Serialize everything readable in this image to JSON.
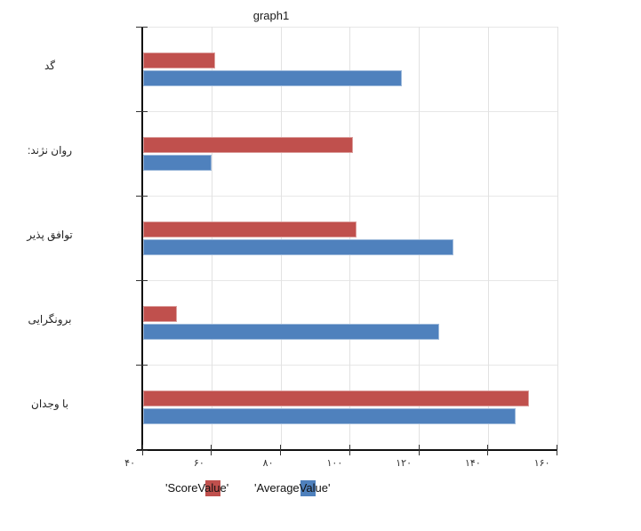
{
  "title": "graph1",
  "legend": {
    "items": [
      {
        "label": "'ScoreValue'",
        "color": "#C0504D"
      },
      {
        "label": "'AverageValue'",
        "color": "#4F81BD"
      }
    ]
  },
  "chart_data": {
    "type": "bar",
    "orientation": "horizontal",
    "title": "graph1",
    "categories": [
      "گد",
      "روان نژند:",
      "توافق پذیر",
      "برونگرایی",
      "با وجدان"
    ],
    "series": [
      {
        "name": "'ScoreValue'",
        "color": "#C0504D",
        "values": [
          61,
          101,
          102,
          50,
          152
        ]
      },
      {
        "name": "'AverageValue'",
        "color": "#4F81BD",
        "values": [
          115,
          60,
          130,
          126,
          148
        ]
      }
    ],
    "xlim": [
      40,
      160
    ],
    "x_ticks": [
      40,
      60,
      80,
      100,
      120,
      140,
      160
    ],
    "x_tick_labels": [
      "۴۰",
      "۶۰",
      "۸۰",
      "۱۰۰",
      "۱۲۰",
      "۱۴۰",
      "۱۶۰"
    ],
    "grid": true,
    "legend_position": "bottom",
    "bar_order_per_category": [
      "ScoreValue on top",
      "AverageValue below"
    ]
  }
}
